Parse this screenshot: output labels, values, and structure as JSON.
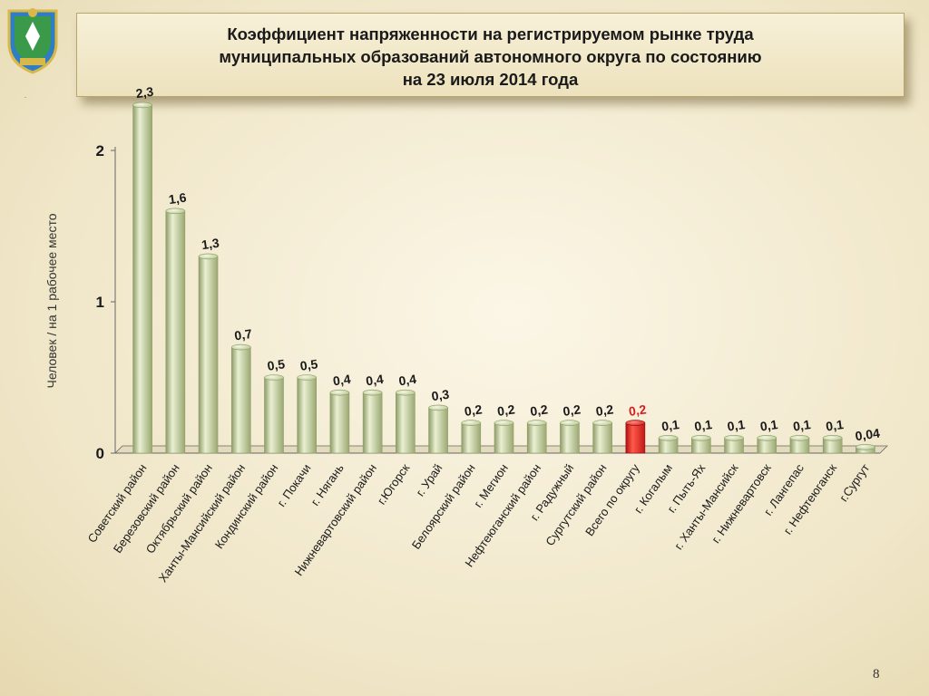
{
  "title": "Коэффициент напряженности на регистрируемом рынке труда\nмуниципальных образований автономного округа по состоянию\nна 23 июля 2014 года",
  "page_number": "8",
  "dot_text": ".",
  "colors": {
    "bar": "#c5d1a3",
    "bar_edge": "#8d9c66",
    "bar_highlight": "#e6443a",
    "label_highlight": "#d62020",
    "axis": "#666666",
    "text": "#1a1a1a"
  },
  "chart_data": {
    "type": "bar",
    "title": "Коэффициент напряженности на регистрируемом рынке труда муниципальных образований автономного округа по состоянию на 23 июля 2014 года",
    "ylabel": "Человек / на 1 рабочее место",
    "xlabel": "",
    "ylim": [
      0,
      2
    ],
    "yticks": [
      "0",
      "1",
      "2"
    ],
    "grid": false,
    "categories": [
      "Советский район",
      "Березовский район",
      "Октябрьский район",
      "Ханты-Мансийский район",
      "Кондинский район",
      "г. Покачи",
      "г. Нягань",
      "Нижневартовский район",
      "г.Югорск",
      "г. Урай",
      "Белоярский район",
      "г. Мегион",
      "Нефтеюганский район",
      "г. Радужный",
      "Сургутский район",
      "Всего по округу",
      "г. Когалым",
      "г. Пыть-Ях",
      "г. Ханты-Мансийск",
      "г. Нижневартовск",
      "г. Лангепас",
      "г. Нефтеюганск",
      "г.Сургут"
    ],
    "values": [
      2.3,
      1.6,
      1.3,
      0.7,
      0.5,
      0.5,
      0.4,
      0.4,
      0.4,
      0.3,
      0.2,
      0.2,
      0.2,
      0.2,
      0.2,
      0.2,
      0.1,
      0.1,
      0.1,
      0.1,
      0.1,
      0.1,
      0.04
    ],
    "value_labels": [
      "2,3",
      "1,6",
      "1,3",
      "0,7",
      "0,5",
      "0,5",
      "0,4",
      "0,4",
      "0,4",
      "0,3",
      "0,2",
      "0,2",
      "0,2",
      "0,2",
      "0,2",
      "0,2",
      "0,1",
      "0,1",
      "0,1",
      "0,1",
      "0,1",
      "0,1",
      "0,04"
    ],
    "highlight_category": "Всего по округу"
  }
}
